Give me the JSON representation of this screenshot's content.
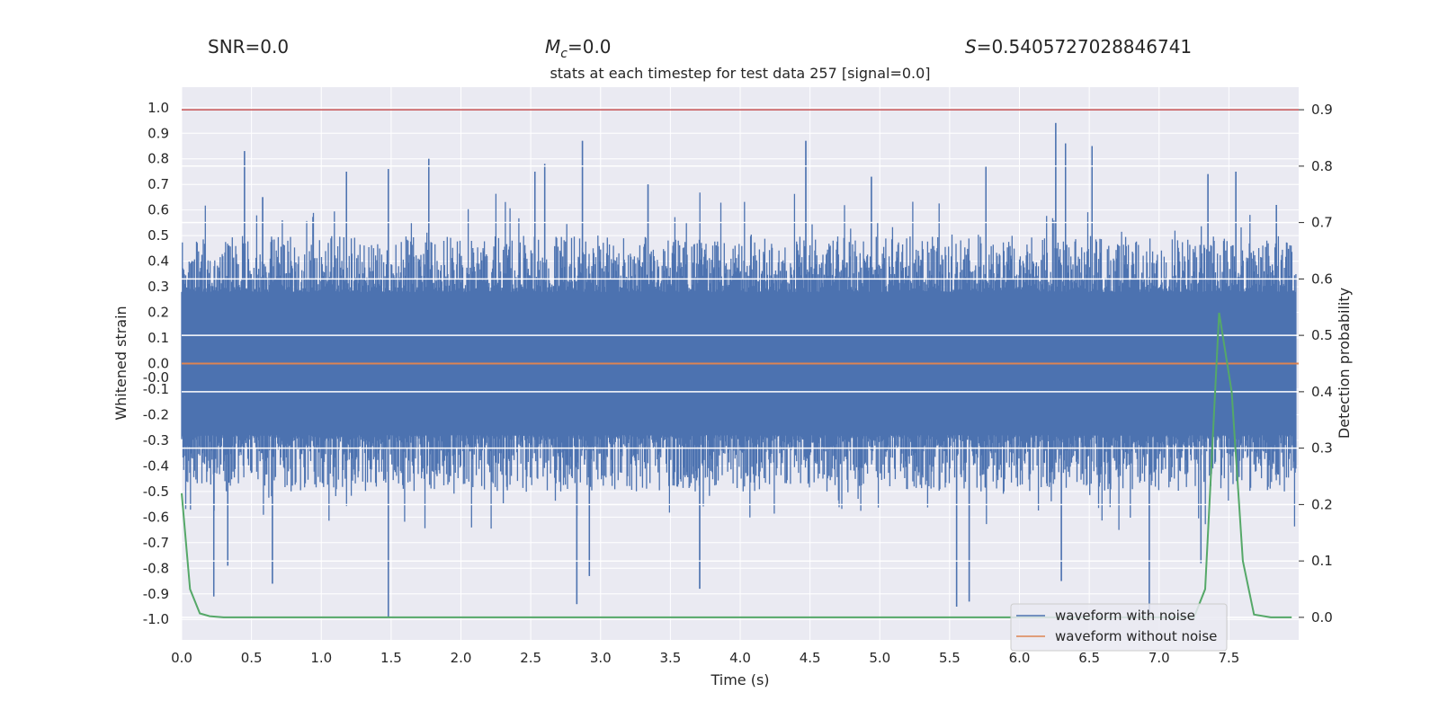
{
  "header": {
    "snr": "SNR=0.0",
    "mc_symbol": "M",
    "mc_sub": "c",
    "mc_value": "=0.0",
    "s_symbol": "S",
    "s_value": "=0.5405727028846741"
  },
  "chart_data": {
    "type": "line",
    "title": "stats at each timestep for test data 257 [signal=0.0]",
    "xlabel": "Time (s)",
    "ylabel": "Whitened strain",
    "y2label": "Detection probability",
    "xlim": [
      0.0,
      8.0
    ],
    "ylim": [
      -1.08,
      1.08
    ],
    "y2lim": [
      -0.04,
      0.94
    ],
    "x_ticks": [
      "0.0",
      "0.5",
      "1.0",
      "1.5",
      "2.0",
      "2.5",
      "3.0",
      "3.5",
      "4.0",
      "4.5",
      "5.0",
      "5.5",
      "6.0",
      "6.5",
      "7.0",
      "7.5"
    ],
    "y_ticks": [
      "1.0",
      "0.9",
      "0.8",
      "0.7",
      "0.6",
      "0.5",
      "0.4",
      "0.3",
      "0.2",
      "0.1",
      "0.0",
      "-0.0",
      "-0.1",
      "-0.2",
      "-0.3",
      "-0.4",
      "-0.5",
      "-0.6",
      "-0.7",
      "-0.8",
      "-0.9",
      "-1.0"
    ],
    "y2_ticks": [
      "0.9",
      "0.8",
      "0.7",
      "0.6",
      "0.5",
      "0.4",
      "0.3",
      "0.2",
      "0.1",
      "0.0"
    ],
    "grid": true,
    "legend_position": "bottom-right",
    "threshold": {
      "axis": "right",
      "value": 0.9,
      "color": "#c44e52"
    },
    "series": [
      {
        "name": "waveform with noise",
        "axis": "left",
        "color": "#4c72b0",
        "description": "dense noise, envelope approx ±0.4 with spikes",
        "spikes": [
          {
            "x": 0.45,
            "y": 0.83
          },
          {
            "x": 0.58,
            "y": 0.65
          },
          {
            "x": 1.18,
            "y": 0.75
          },
          {
            "x": 1.48,
            "y": 0.76
          },
          {
            "x": 1.77,
            "y": 0.8
          },
          {
            "x": 2.53,
            "y": 0.75
          },
          {
            "x": 2.6,
            "y": 0.78
          },
          {
            "x": 2.87,
            "y": 0.87
          },
          {
            "x": 3.34,
            "y": 0.7
          },
          {
            "x": 4.47,
            "y": 0.87
          },
          {
            "x": 4.94,
            "y": 0.73
          },
          {
            "x": 5.76,
            "y": 0.77
          },
          {
            "x": 6.26,
            "y": 0.94
          },
          {
            "x": 6.33,
            "y": 0.86
          },
          {
            "x": 6.52,
            "y": 0.85
          },
          {
            "x": 7.35,
            "y": 0.74
          },
          {
            "x": 7.55,
            "y": 0.75
          },
          {
            "x": 7.84,
            "y": 0.62
          },
          {
            "x": 0.23,
            "y": -0.91
          },
          {
            "x": 0.33,
            "y": -0.79
          },
          {
            "x": 0.65,
            "y": -0.86
          },
          {
            "x": 1.48,
            "y": -0.99
          },
          {
            "x": 2.83,
            "y": -0.94
          },
          {
            "x": 2.92,
            "y": -0.83
          },
          {
            "x": 3.71,
            "y": -0.88
          },
          {
            "x": 5.55,
            "y": -0.95
          },
          {
            "x": 5.64,
            "y": -0.93
          },
          {
            "x": 6.3,
            "y": -0.85
          },
          {
            "x": 6.93,
            "y": -0.99
          },
          {
            "x": 7.3,
            "y": -0.78
          }
        ]
      },
      {
        "name": "waveform without noise",
        "axis": "left",
        "color": "#dd8452",
        "x": [
          0.0,
          8.0
        ],
        "y": [
          0.0,
          0.0
        ]
      },
      {
        "name": "",
        "axis": "right",
        "color": "#55a868",
        "x": [
          0.0,
          0.06,
          0.13,
          0.2,
          0.3,
          0.5,
          7.0,
          7.25,
          7.33,
          7.43,
          7.52,
          7.6,
          7.68,
          7.8,
          7.95
        ],
        "y": [
          0.22,
          0.05,
          0.007,
          0.002,
          0.0,
          0.0,
          0.0,
          0.0,
          0.05,
          0.54,
          0.4,
          0.1,
          0.005,
          0.0,
          0.0
        ]
      }
    ]
  }
}
